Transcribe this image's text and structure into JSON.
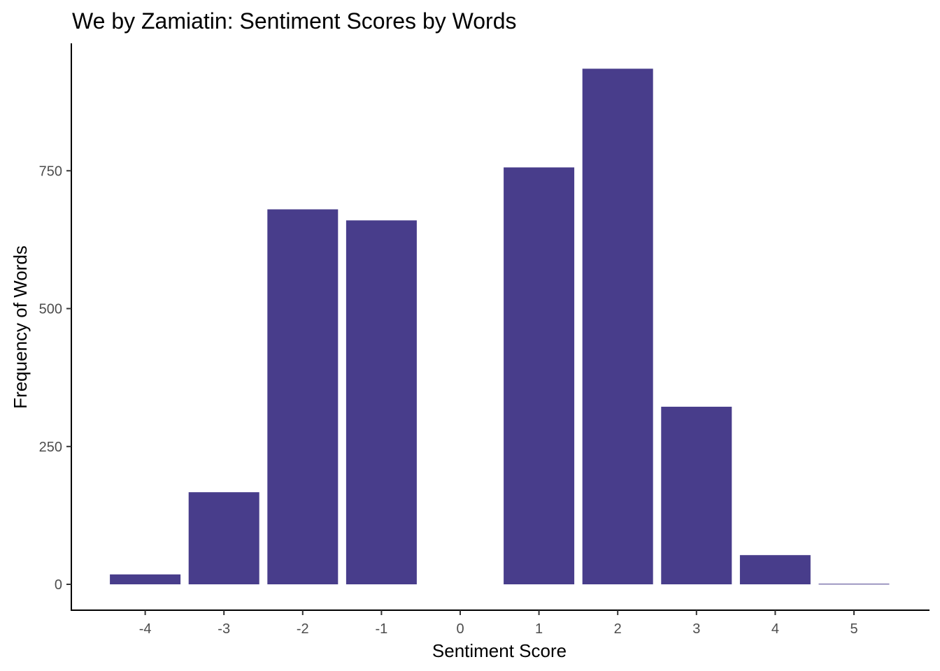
{
  "chart_data": {
    "type": "bar",
    "title": "We by Zamiatin: Sentiment Scores by Words",
    "xlabel": "Sentiment Score",
    "ylabel": "Frequency of Words",
    "categories": [
      -4,
      -3,
      -2,
      -1,
      1,
      2,
      3,
      4,
      5
    ],
    "values": [
      18,
      167,
      680,
      660,
      756,
      935,
      322,
      53,
      1
    ],
    "bar_color": "#483D8B",
    "xlim": [
      -5,
      6
    ],
    "ylim": [
      0,
      935
    ],
    "x_ticks": [
      -4,
      -3,
      -2,
      -1,
      0,
      1,
      2,
      3,
      4,
      5
    ],
    "y_ticks": [
      0,
      250,
      500,
      750
    ],
    "grid": false,
    "legend": "none"
  }
}
